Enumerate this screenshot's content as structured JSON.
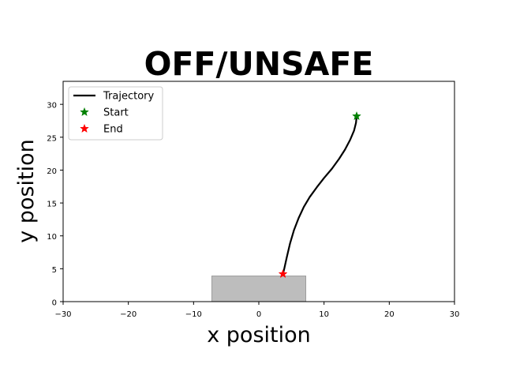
{
  "chart_data": {
    "type": "line",
    "title": "OFF/UNSAFE",
    "xlabel": "x position",
    "ylabel": "y position",
    "xlim": [
      -30,
      30
    ],
    "ylim": [
      0,
      33.5
    ],
    "xticks": [
      -30,
      -20,
      -10,
      0,
      10,
      20,
      30
    ],
    "yticks": [
      0,
      5,
      10,
      15,
      20,
      25,
      30
    ],
    "xtick_labels": [
      "−30",
      "−20",
      "−10",
      "0",
      "10",
      "20",
      "30"
    ],
    "ytick_labels": [
      "0",
      "5",
      "10",
      "15",
      "20",
      "25",
      "30"
    ],
    "grid": false,
    "legend_position": "top-left",
    "legend": [
      {
        "label": "Trajectory",
        "kind": "line",
        "color": "#000000"
      },
      {
        "label": "Start",
        "kind": "star",
        "color": "#008000"
      },
      {
        "label": "End",
        "kind": "star",
        "color": "#ff0000"
      }
    ],
    "series": [
      {
        "name": "Trajectory",
        "color": "#000000",
        "points": [
          [
            15.0,
            28.2
          ],
          [
            14.9,
            27.2
          ],
          [
            14.6,
            26.0
          ],
          [
            14.0,
            24.6
          ],
          [
            13.2,
            23.1
          ],
          [
            12.3,
            21.7
          ],
          [
            11.2,
            20.2
          ],
          [
            10.0,
            18.8
          ],
          [
            8.9,
            17.4
          ],
          [
            7.8,
            15.9
          ],
          [
            6.9,
            14.4
          ],
          [
            6.1,
            12.7
          ],
          [
            5.4,
            10.9
          ],
          [
            4.8,
            8.9
          ],
          [
            4.3,
            6.8
          ],
          [
            3.9,
            5.0
          ],
          [
            3.7,
            4.2
          ]
        ]
      }
    ],
    "markers": [
      {
        "name": "Start",
        "x": 15.0,
        "y": 28.2,
        "color": "#008000"
      },
      {
        "name": "End",
        "x": 3.7,
        "y": 4.2,
        "color": "#ff0000"
      }
    ],
    "region": {
      "x": [
        -7.2,
        7.2
      ],
      "y": [
        0,
        3.9
      ],
      "color": "#bdbdbd",
      "edge": "#9e9e9e"
    }
  }
}
